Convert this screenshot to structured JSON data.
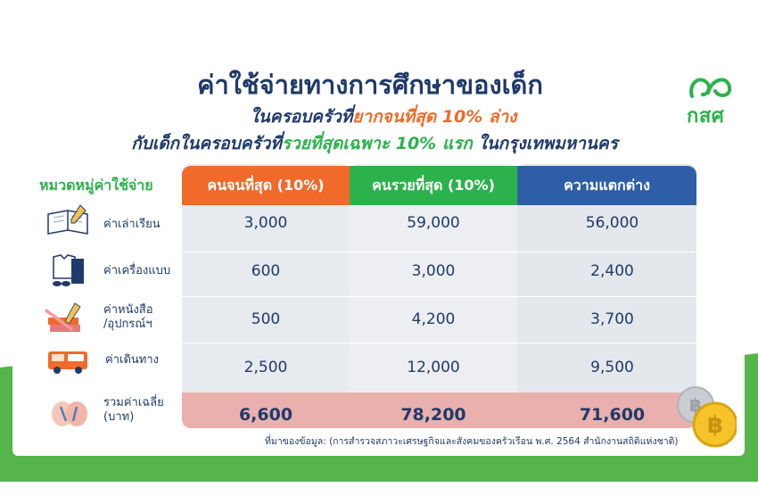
{
  "logo": {
    "text": "กสศ"
  },
  "title": {
    "line1": "ค่าใช้จ่ายทางการศึกษาของเด็ก",
    "line2_pre": "ในครอบครัวที่",
    "line2_hl": "ยากจนที่สุด 10% ล่าง",
    "line3_pre": "กับเด็กในครอบครัวที่",
    "line3_hl": "รวยที่สุดเฉพาะ 10% แรก",
    "line3_post": " ในกรุงเทพมหานคร"
  },
  "table": {
    "category_header": "หมวดหมู่ค่าใช้จ่าย",
    "columns": [
      "คนจนที่สุด (10%)",
      "คนรวยที่สุด (10%)",
      "ความแตกต่าง"
    ],
    "column_colors": [
      "#f06a2a",
      "#2bb24c",
      "#2e5ea6"
    ],
    "rows": [
      {
        "icon": "open-book-icon",
        "label": "ค่าเล่าเรียน",
        "values": [
          "3,000",
          "59,000",
          "56,000"
        ]
      },
      {
        "icon": "school-uniform-icon",
        "label": "ค่าเครื่องแบบ",
        "values": [
          "600",
          "3,000",
          "2,400"
        ]
      },
      {
        "icon": "books-pencil-icon",
        "label": "ค่าหนังสือ\n/อุปกรณ์ฯ",
        "label_1": "ค่าหนังสือ",
        "label_2": "/อุปกรณ์ฯ",
        "values": [
          "500",
          "4,200",
          "3,700"
        ]
      },
      {
        "icon": "bus-icon",
        "label": "ค่าเดินทาง",
        "values": [
          "2,500",
          "12,000",
          "9,500"
        ]
      }
    ],
    "total": {
      "icon": "money-bag-icon",
      "label_1": "รวมค่าเฉลี่ย",
      "label_2": "(บาท)",
      "values": [
        "6,600",
        "78,200",
        "71,600"
      ]
    }
  },
  "source": "ที่มาของข้อมูล:  (การสำรวจสภาวะเศรษฐกิจและสังคมของครัวเรือน พ.ศ. 2564 สำนักงานสถิติแห่งชาติ)",
  "coins": {
    "icon": "baht-coins-icon",
    "symbol": "฿"
  }
}
